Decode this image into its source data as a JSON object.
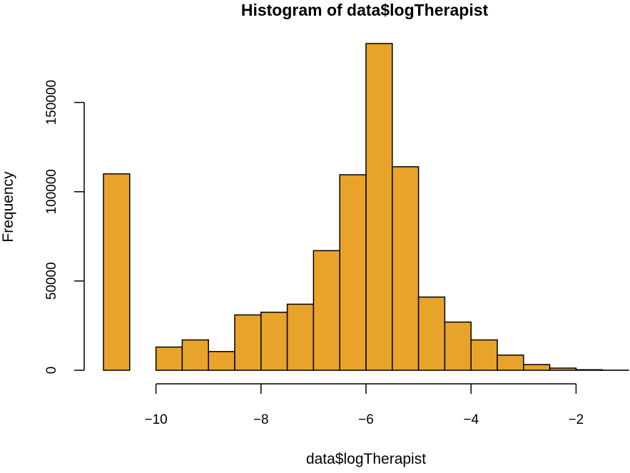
{
  "chart_data": {
    "type": "bar",
    "title": "Histogram of data$logTherapist",
    "xlabel": "data$logTherapist",
    "ylabel": "Frequency",
    "bar_color": "#E8A32A",
    "xlim": [
      -11,
      -1
    ],
    "ylim": [
      0,
      183000
    ],
    "x_ticks": [
      -10,
      -8,
      -6,
      -4,
      -2
    ],
    "x_tick_labels": [
      "−10",
      "−8",
      "−6",
      "−4",
      "−2"
    ],
    "y_ticks": [
      0,
      50000,
      100000,
      150000
    ],
    "y_tick_labels": [
      "0",
      "50000",
      "100000",
      "150000"
    ],
    "bins": [
      {
        "start": -11.0,
        "end": -10.5,
        "count": 110000
      },
      {
        "start": -10.5,
        "end": -10.0,
        "count": 0
      },
      {
        "start": -10.0,
        "end": -9.5,
        "count": 13000
      },
      {
        "start": -9.5,
        "end": -9.0,
        "count": 17000
      },
      {
        "start": -9.0,
        "end": -8.5,
        "count": 10500
      },
      {
        "start": -8.5,
        "end": -8.0,
        "count": 31000
      },
      {
        "start": -8.0,
        "end": -7.5,
        "count": 32500
      },
      {
        "start": -7.5,
        "end": -7.0,
        "count": 37000
      },
      {
        "start": -7.0,
        "end": -6.5,
        "count": 67000
      },
      {
        "start": -6.5,
        "end": -6.0,
        "count": 109500
      },
      {
        "start": -6.0,
        "end": -5.5,
        "count": 183000
      },
      {
        "start": -5.5,
        "end": -5.0,
        "count": 114000
      },
      {
        "start": -5.0,
        "end": -4.5,
        "count": 41000
      },
      {
        "start": -4.5,
        "end": -4.0,
        "count": 27000
      },
      {
        "start": -4.0,
        "end": -3.5,
        "count": 17000
      },
      {
        "start": -3.5,
        "end": -3.0,
        "count": 8500
      },
      {
        "start": -3.0,
        "end": -2.5,
        "count": 3200
      },
      {
        "start": -2.5,
        "end": -2.0,
        "count": 1200
      },
      {
        "start": -2.0,
        "end": -1.5,
        "count": 300
      },
      {
        "start": -1.5,
        "end": -1.0,
        "count": 50
      }
    ]
  }
}
